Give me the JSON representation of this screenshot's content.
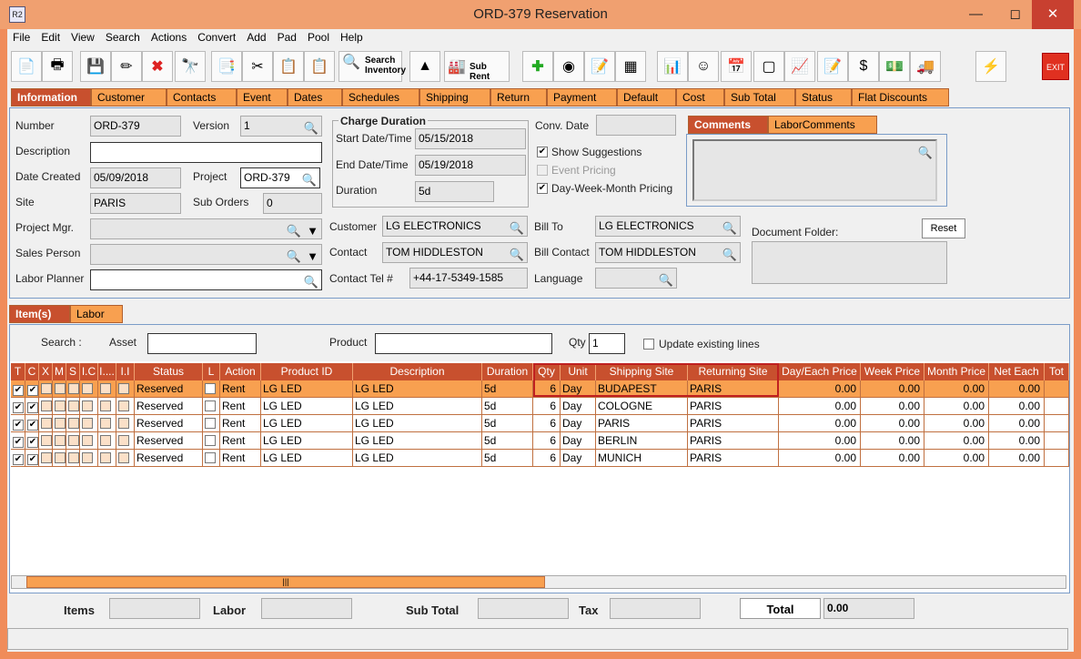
{
  "window": {
    "title": "ORD-379 Reservation",
    "app_icon": "R2"
  },
  "menu": [
    "File",
    "Edit",
    "View",
    "Search",
    "Actions",
    "Convert",
    "Add",
    "Pad",
    "Pool",
    "Help"
  ],
  "toolbar": {
    "search_inventory": "Search Inventory",
    "sub_rent": "Sub Rent",
    "exit": "EXIT"
  },
  "tabs": [
    "Information",
    "Customer",
    "Contacts",
    "Event",
    "Dates",
    "Schedules",
    "Shipping",
    "Return",
    "Payment",
    "Default",
    "Cost",
    "Sub Total",
    "Status",
    "Flat Discounts"
  ],
  "info": {
    "number_label": "Number",
    "number": "ORD-379",
    "version_label": "Version",
    "version": "1",
    "description_label": "Description",
    "description": "",
    "date_created_label": "Date Created",
    "date_created": "05/09/2018",
    "project_label": "Project",
    "project": "ORD-379",
    "site_label": "Site",
    "site": "PARIS",
    "sub_orders_label": "Sub Orders",
    "sub_orders": "0",
    "project_mgr_label": "Project Mgr.",
    "sales_person_label": "Sales Person",
    "labor_planner_label": "Labor Planner",
    "charge_duration_title": "Charge Duration",
    "start_label": "Start Date/Time",
    "start": "05/15/2018",
    "end_label": "End Date/Time",
    "end": "05/19/2018",
    "duration_label": "Duration",
    "duration": "5d",
    "conv_date_label": "Conv. Date",
    "show_suggestions": "Show Suggestions",
    "event_pricing": "Event Pricing",
    "dwm_pricing": "Day-Week-Month Pricing",
    "customer_label": "Customer",
    "customer": "LG ELECTRONICS",
    "contact_label": "Contact",
    "contact": "TOM HIDDLESTON",
    "contact_tel_label": "Contact Tel #",
    "contact_tel": "+44-17-5349-1585",
    "bill_to_label": "Bill To",
    "bill_to": "LG ELECTRONICS",
    "bill_contact_label": "Bill Contact",
    "bill_contact": "TOM HIDDLESTON",
    "language_label": "Language",
    "comments_tab": "Comments",
    "labor_comments_tab": "LaborComments",
    "document_folder_label": "Document Folder:",
    "reset": "Reset"
  },
  "item_tabs": [
    "Item(s)",
    "Labor"
  ],
  "search": {
    "label": "Search :",
    "asset_label": "Asset",
    "product_label": "Product",
    "qty_label": "Qty",
    "qty": "1",
    "update_existing": "Update existing lines"
  },
  "grid": {
    "columns": [
      "T",
      "C",
      "X",
      "M",
      "S",
      "I.C",
      "I....",
      "I.I",
      "Status",
      "L",
      "Action",
      "Product ID",
      "Description",
      "Duration",
      "Qty",
      "Unit",
      "Shipping Site",
      "Returning Site",
      "Day/Each Price",
      "Week Price",
      "Month Price",
      "Net Each",
      "Tot"
    ],
    "rows": [
      {
        "status": "Reserved",
        "action": "Rent",
        "product_id": "LG LED",
        "description": "LG LED",
        "duration": "5d",
        "qty": "6",
        "unit": "Day",
        "shipping": "BUDAPEST",
        "returning": "PARIS",
        "day": "0.00",
        "week": "0.00",
        "month": "0.00",
        "net": "0.00"
      },
      {
        "status": "Reserved",
        "action": "Rent",
        "product_id": "LG LED",
        "description": "LG LED",
        "duration": "5d",
        "qty": "6",
        "unit": "Day",
        "shipping": "COLOGNE",
        "returning": "PARIS",
        "day": "0.00",
        "week": "0.00",
        "month": "0.00",
        "net": "0.00"
      },
      {
        "status": "Reserved",
        "action": "Rent",
        "product_id": "LG LED",
        "description": "LG LED",
        "duration": "5d",
        "qty": "6",
        "unit": "Day",
        "shipping": "PARIS",
        "returning": "PARIS",
        "day": "0.00",
        "week": "0.00",
        "month": "0.00",
        "net": "0.00"
      },
      {
        "status": "Reserved",
        "action": "Rent",
        "product_id": "LG LED",
        "description": "LG LED",
        "duration": "5d",
        "qty": "6",
        "unit": "Day",
        "shipping": "BERLIN",
        "returning": "PARIS",
        "day": "0.00",
        "week": "0.00",
        "month": "0.00",
        "net": "0.00"
      },
      {
        "status": "Reserved",
        "action": "Rent",
        "product_id": "LG LED",
        "description": "LG LED",
        "duration": "5d",
        "qty": "6",
        "unit": "Day",
        "shipping": "MUNICH",
        "returning": "PARIS",
        "day": "0.00",
        "week": "0.00",
        "month": "0.00",
        "net": "0.00"
      }
    ]
  },
  "totals": {
    "items_label": "Items",
    "labor_label": "Labor",
    "sub_total_label": "Sub Total",
    "tax_label": "Tax",
    "total_label": "Total",
    "total": "0.00"
  },
  "colors": {
    "accent": "#f8a050",
    "active_tab": "#c8502e",
    "selected_row": "#f8a050",
    "highlight_border": "#c02020"
  }
}
